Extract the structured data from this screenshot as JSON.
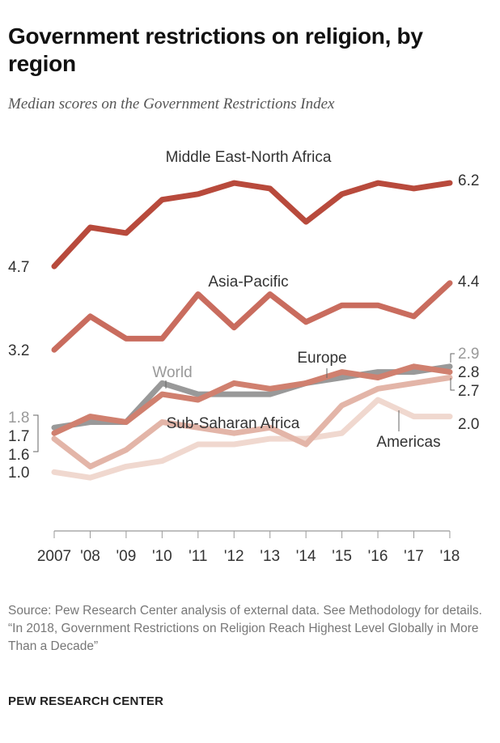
{
  "title": "Government restrictions on religion, by region",
  "subtitle": "Median scores on the Government Restrictions Index",
  "source": "Source: Pew Research Center analysis of external data. See Methodology for details.",
  "quote": "“In 2018, Government Restrictions on Religion Reach Highest Level Globally in More Than a Decade”",
  "brand": "PEW RESEARCH CENTER",
  "chart_data": {
    "type": "line",
    "title": "Government restrictions on religion, by region",
    "subtitle": "Median scores on the Government Restrictions Index",
    "categories": [
      "2007",
      "'08",
      "'09",
      "'10",
      "'11",
      "'12",
      "'13",
      "'14",
      "'15",
      "'16",
      "'17",
      "'18"
    ],
    "ylim": [
      0,
      6.5
    ],
    "grid": false,
    "series": [
      {
        "name": "Middle East-North Africa",
        "color": "#b84a3c",
        "values": [
          4.7,
          5.4,
          5.3,
          5.9,
          6.0,
          6.2,
          6.1,
          5.5,
          6.0,
          6.2,
          6.1,
          6.2
        ],
        "start_label": "4.7",
        "end_label": "6.2"
      },
      {
        "name": "Asia-Pacific",
        "color": "#c96c5e",
        "values": [
          3.2,
          3.8,
          3.4,
          3.4,
          4.2,
          3.6,
          4.2,
          3.7,
          4.0,
          4.0,
          3.8,
          4.4
        ],
        "start_label": "3.2",
        "end_label": "4.4"
      },
      {
        "name": "World",
        "color": "#999999",
        "values": [
          1.8,
          1.9,
          1.9,
          2.6,
          2.4,
          2.4,
          2.4,
          2.6,
          2.7,
          2.8,
          2.8,
          2.9
        ],
        "start_label": "1.8",
        "end_label": "2.9"
      },
      {
        "name": "Europe",
        "color": "#d0806f",
        "values": [
          1.7,
          2.0,
          1.9,
          2.4,
          2.3,
          2.6,
          2.5,
          2.6,
          2.8,
          2.7,
          2.9,
          2.8
        ],
        "start_label": "1.7",
        "end_label": "2.8"
      },
      {
        "name": "Sub-Saharan Africa",
        "color": "#e3b5a8",
        "values": [
          1.6,
          1.1,
          1.4,
          1.9,
          1.8,
          1.7,
          1.8,
          1.5,
          2.2,
          2.5,
          2.6,
          2.7
        ],
        "start_label": "1.6",
        "end_label": "2.7"
      },
      {
        "name": "Americas",
        "color": "#f0d8cf",
        "values": [
          1.0,
          0.9,
          1.1,
          1.2,
          1.5,
          1.5,
          1.6,
          1.6,
          1.7,
          2.3,
          2.0,
          2.0
        ],
        "start_label": "1.0",
        "end_label": "2.0"
      }
    ]
  }
}
